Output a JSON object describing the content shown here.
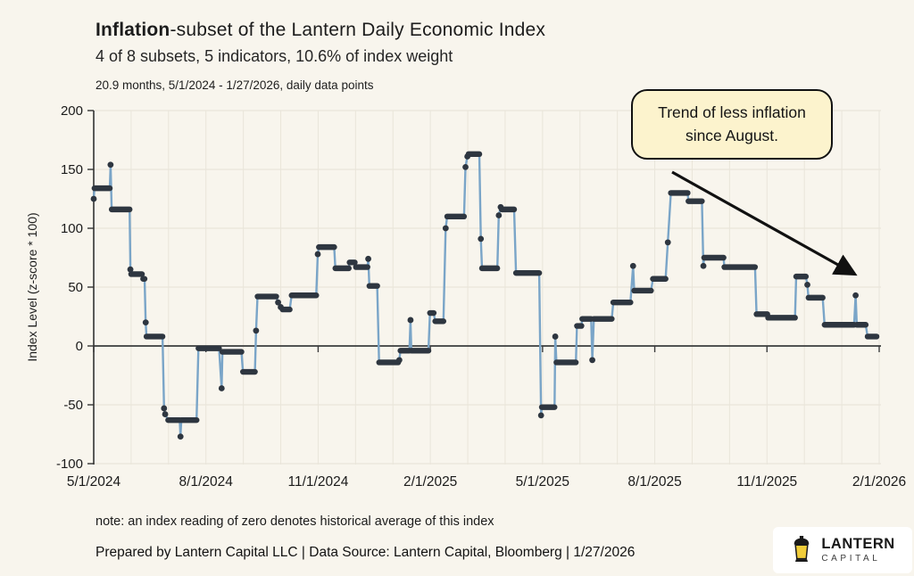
{
  "header": {
    "title_bold": "Inflation",
    "title_rest": "-subset of the Lantern Daily Economic Index",
    "subtitle": "4 of 8 subsets, 5 indicators, 10.6% of index weight",
    "meta": "20.9 months, 5/1/2024 - 1/27/2026, daily data points"
  },
  "annotation": {
    "line1": "Trend of less inflation",
    "line2": "since August."
  },
  "footer": {
    "note": "note: an index reading of zero denotes historical average of this index",
    "credit": "Prepared by Lantern Capital LLC | Data Source: Lantern Capital, Bloomberg |  1/27/2026"
  },
  "logo": {
    "name": "LANTERN",
    "sub": "CAPITAL"
  },
  "colors": {
    "bg": "#f8f5ed",
    "line": "#7aa5c8",
    "marker": "#2e3640",
    "grid": "#e9e5da",
    "zero_line": "#3b3c3d",
    "spine": "#333333",
    "tick_text": "#1b1b1b",
    "annotation_fill": "#fcf3cd",
    "annotation_border": "#111111",
    "arrow": "#111111",
    "logo_yellow": "#f1cd3a",
    "logo_dark": "#1a1a1a"
  },
  "chart_data": {
    "type": "line",
    "title": "Inflation-subset of the Lantern Daily Economic Index",
    "xlabel": "",
    "ylabel": "Index Level (z-score * 100)",
    "ylim": [
      -100,
      200
    ],
    "yticks": [
      200,
      150,
      100,
      50,
      0,
      -50,
      -100
    ],
    "x_unit": "months since 5/1/2024",
    "xlim": [
      0,
      21
    ],
    "grid": true,
    "legend": "none",
    "xticks": [
      {
        "t": 0,
        "label": "5/1/2024"
      },
      {
        "t": 3,
        "label": "8/1/2024"
      },
      {
        "t": 6,
        "label": "11/1/2024"
      },
      {
        "t": 9,
        "label": "2/1/2025"
      },
      {
        "t": 12,
        "label": "5/1/2025"
      },
      {
        "t": 15,
        "label": "8/1/2025"
      },
      {
        "t": 18,
        "label": "11/1/2025"
      },
      {
        "t": 21,
        "label": "2/1/2026"
      }
    ],
    "points": [
      [
        0,
        125
      ],
      [
        0.02,
        134
      ],
      [
        0.43,
        134
      ],
      [
        0.45,
        154
      ],
      [
        0.48,
        116
      ],
      [
        0.96,
        116
      ],
      [
        0.98,
        65
      ],
      [
        1.0,
        61
      ],
      [
        1.29,
        61
      ],
      [
        1.32,
        57
      ],
      [
        1.36,
        57
      ],
      [
        1.39,
        20
      ],
      [
        1.41,
        8
      ],
      [
        1.84,
        8
      ],
      [
        1.88,
        -53
      ],
      [
        1.91,
        -58
      ],
      [
        1.99,
        -63
      ],
      [
        2.3,
        -63
      ],
      [
        2.32,
        -77
      ],
      [
        2.34,
        -63
      ],
      [
        2.75,
        -63
      ],
      [
        2.8,
        -2
      ],
      [
        3.35,
        -2
      ],
      [
        3.42,
        -36
      ],
      [
        3.44,
        -5
      ],
      [
        3.95,
        -5
      ],
      [
        3.99,
        -22
      ],
      [
        4.31,
        -22
      ],
      [
        4.34,
        13
      ],
      [
        4.38,
        42
      ],
      [
        4.88,
        42
      ],
      [
        4.93,
        37
      ],
      [
        5.0,
        33
      ],
      [
        5.05,
        31
      ],
      [
        5.24,
        31
      ],
      [
        5.29,
        43
      ],
      [
        5.95,
        43
      ],
      [
        5.99,
        78
      ],
      [
        6.02,
        84
      ],
      [
        6.43,
        84
      ],
      [
        6.46,
        66
      ],
      [
        6.82,
        66
      ],
      [
        6.84,
        71
      ],
      [
        6.98,
        71
      ],
      [
        7.01,
        67
      ],
      [
        7.32,
        67
      ],
      [
        7.34,
        74
      ],
      [
        7.37,
        51
      ],
      [
        7.58,
        51
      ],
      [
        7.63,
        -14
      ],
      [
        8.14,
        -14
      ],
      [
        8.17,
        -12
      ],
      [
        8.2,
        -4
      ],
      [
        8.44,
        -4
      ],
      [
        8.47,
        22
      ],
      [
        8.49,
        -4
      ],
      [
        8.95,
        -4
      ],
      [
        8.99,
        28
      ],
      [
        9.09,
        28
      ],
      [
        9.13,
        21
      ],
      [
        9.35,
        21
      ],
      [
        9.41,
        100
      ],
      [
        9.45,
        110
      ],
      [
        9.9,
        110
      ],
      [
        9.94,
        152
      ],
      [
        9.99,
        161
      ],
      [
        10.02,
        163
      ],
      [
        10.31,
        163
      ],
      [
        10.35,
        91
      ],
      [
        10.38,
        66
      ],
      [
        10.79,
        66
      ],
      [
        10.83,
        111
      ],
      [
        10.88,
        118
      ],
      [
        10.91,
        116
      ],
      [
        11.24,
        116
      ],
      [
        11.29,
        62
      ],
      [
        11.91,
        62
      ],
      [
        11.96,
        -59
      ],
      [
        11.98,
        -52
      ],
      [
        12.32,
        -52
      ],
      [
        12.34,
        8
      ],
      [
        12.37,
        -14
      ],
      [
        12.89,
        -14
      ],
      [
        12.92,
        17
      ],
      [
        13.04,
        17
      ],
      [
        13.06,
        23
      ],
      [
        13.3,
        23
      ],
      [
        13.33,
        -12
      ],
      [
        13.37,
        23
      ],
      [
        13.85,
        23
      ],
      [
        13.89,
        37
      ],
      [
        14.35,
        37
      ],
      [
        14.42,
        68
      ],
      [
        14.45,
        47
      ],
      [
        14.9,
        47
      ],
      [
        14.95,
        57
      ],
      [
        15.29,
        57
      ],
      [
        15.35,
        88
      ],
      [
        15.43,
        130
      ],
      [
        15.88,
        130
      ],
      [
        15.9,
        123
      ],
      [
        16.26,
        123
      ],
      [
        16.3,
        68
      ],
      [
        16.32,
        75
      ],
      [
        16.84,
        75
      ],
      [
        16.86,
        67
      ],
      [
        17.68,
        67
      ],
      [
        17.72,
        27
      ],
      [
        18.01,
        27
      ],
      [
        18.03,
        24
      ],
      [
        18.75,
        24
      ],
      [
        18.78,
        59
      ],
      [
        19.04,
        59
      ],
      [
        19.08,
        52
      ],
      [
        19.11,
        41
      ],
      [
        19.49,
        41
      ],
      [
        19.54,
        18
      ],
      [
        20.33,
        18
      ],
      [
        20.37,
        43
      ],
      [
        20.4,
        18
      ],
      [
        20.64,
        18
      ],
      [
        20.69,
        8
      ],
      [
        20.93,
        8
      ]
    ]
  }
}
